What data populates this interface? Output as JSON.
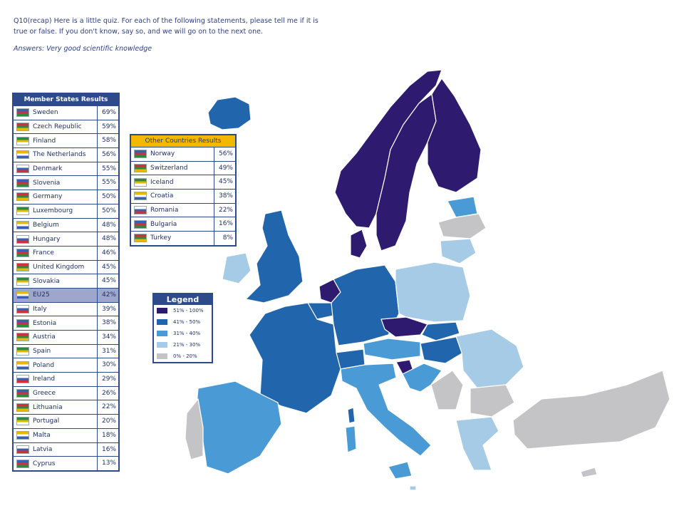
{
  "question": {
    "line1": "Q10(recap) Here is a little quiz. For each of the following statements, please tell me if it is",
    "line2": "true or false. If you don't know, say so, and we will go on to the next one.",
    "answers": "Answers: Very good scientific knowledge"
  },
  "member_states": {
    "title": "Member States Results",
    "rows": [
      {
        "name": "Sweden",
        "value": "69%"
      },
      {
        "name": "Czech Republic",
        "value": "59%"
      },
      {
        "name": "Finland",
        "value": "58%"
      },
      {
        "name": "The Netherlands",
        "value": "56%"
      },
      {
        "name": "Denmark",
        "value": "55%"
      },
      {
        "name": "Slovenia",
        "value": "55%"
      },
      {
        "name": "Germany",
        "value": "50%"
      },
      {
        "name": "Luxembourg",
        "value": "50%"
      },
      {
        "name": "Belgium",
        "value": "48%"
      },
      {
        "name": "Hungary",
        "value": "48%"
      },
      {
        "name": "France",
        "value": "46%"
      },
      {
        "name": "United Kingdom",
        "value": "45%"
      },
      {
        "name": "Slovakia",
        "value": "45%"
      },
      {
        "name": "EU25",
        "value": "42%"
      },
      {
        "name": "Italy",
        "value": "39%"
      },
      {
        "name": "Estonia",
        "value": "38%"
      },
      {
        "name": "Austria",
        "value": "34%"
      },
      {
        "name": "Spain",
        "value": "31%"
      },
      {
        "name": "Poland",
        "value": "30%"
      },
      {
        "name": "Ireland",
        "value": "29%"
      },
      {
        "name": "Greece",
        "value": "26%"
      },
      {
        "name": "Lithuania",
        "value": "22%"
      },
      {
        "name": "Portugal",
        "value": "20%"
      },
      {
        "name": "Malta",
        "value": "18%"
      },
      {
        "name": "Latvia",
        "value": "16%"
      },
      {
        "name": "Cyprus",
        "value": "13%"
      }
    ]
  },
  "other_countries": {
    "title": "Other Countries Results",
    "rows": [
      {
        "name": "Norway",
        "value": "56%"
      },
      {
        "name": "Switzerland",
        "value": "49%"
      },
      {
        "name": "Iceland",
        "value": "45%"
      },
      {
        "name": "Croatia",
        "value": "38%"
      },
      {
        "name": "Romania",
        "value": "22%"
      },
      {
        "name": "Bulgaria",
        "value": "16%"
      },
      {
        "name": "Turkey",
        "value": "8%"
      }
    ]
  },
  "legend": {
    "title": "Legend",
    "items": [
      {
        "label": "51% - 100%",
        "color": "#2e1a6e"
      },
      {
        "label": "41% - 50%",
        "color": "#2166ac"
      },
      {
        "label": "31% - 40%",
        "color": "#4a9ad6"
      },
      {
        "label": "21% - 30%",
        "color": "#a6cbe6"
      },
      {
        "label": "0% - 20%",
        "color": "#c4c4c6"
      }
    ]
  },
  "colors": {
    "dark": "#2e1a6e",
    "mid": "#2166ac",
    "blue": "#4a9ad6",
    "light": "#a6cbe6",
    "grey": "#c4c4c6"
  }
}
